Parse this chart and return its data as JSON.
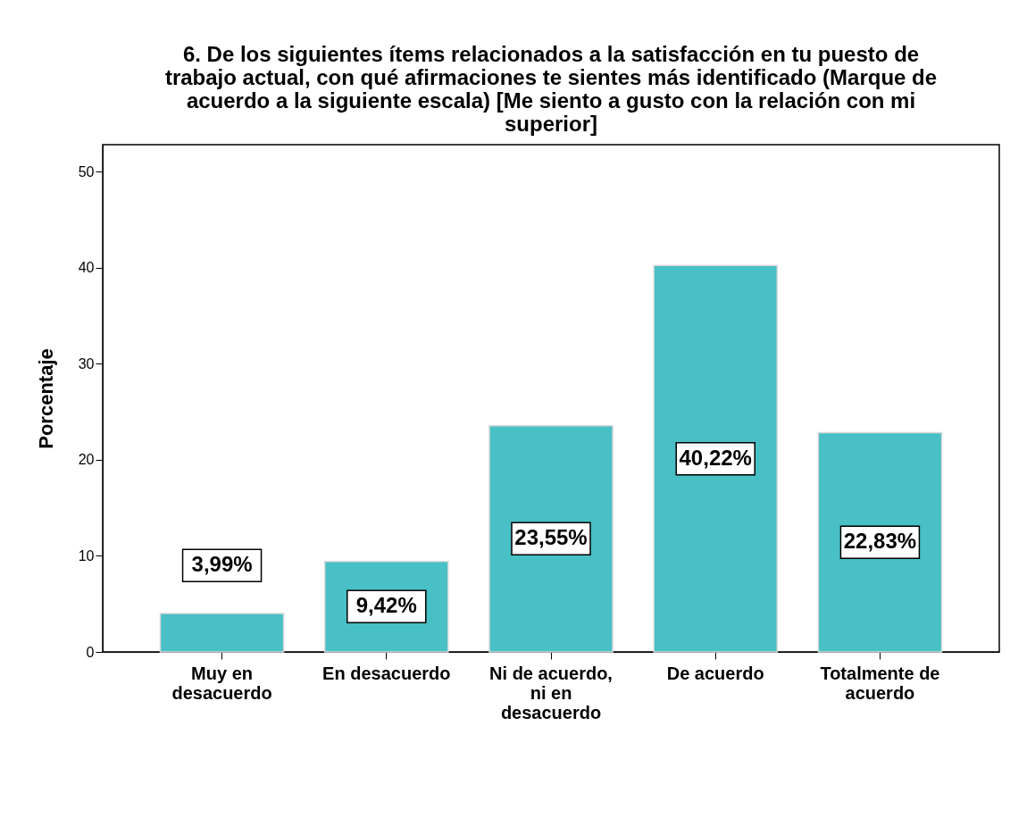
{
  "chart_data": {
    "type": "bar",
    "title": "6.    De los siguientes ítems relacionados a la satisfacción en tu puesto de trabajo actual, con qué afirmaciones te sientes más identificado (Marque de acuerdo a la siguiente escala) [Me siento a gusto con la relación con mi superior]",
    "ylabel": "Porcentaje",
    "categories": [
      "Muy en desacuerdo",
      "En desacuerdo",
      "Ni de acuerdo, ni en desacuerdo",
      "De acuerdo",
      "Totalmente de acuerdo"
    ],
    "values": [
      3.99,
      9.42,
      23.55,
      40.22,
      22.83
    ],
    "value_labels": [
      "3,99%",
      "9,42%",
      "23,55%",
      "40,22%",
      "22,83%"
    ],
    "color": "#48c0c5",
    "ylim": [
      0,
      52.8
    ],
    "yticks": [
      0,
      10,
      20,
      30,
      40,
      50
    ],
    "grid": false
  }
}
